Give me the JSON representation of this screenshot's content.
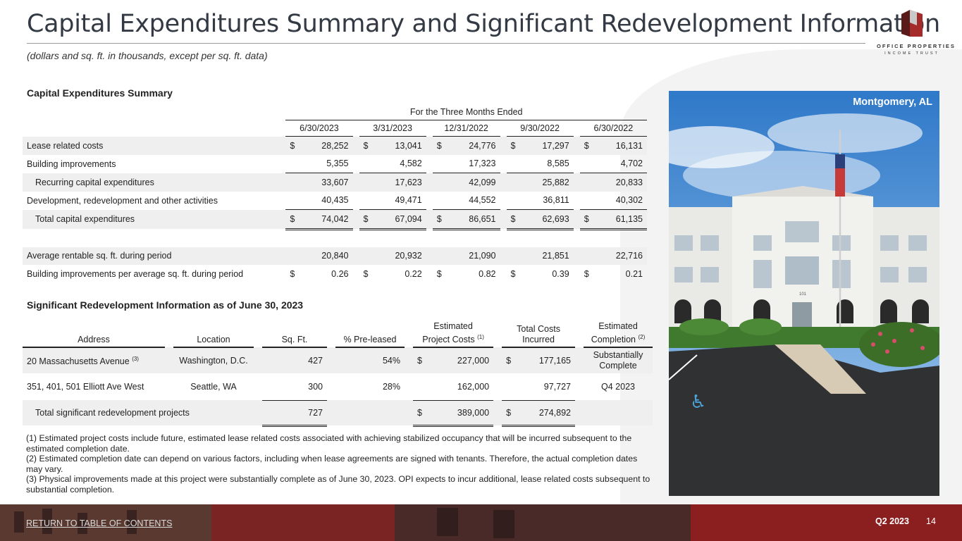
{
  "header": {
    "title": "Capital Expenditures Summary and Significant Redevelopment Information",
    "subtitle": "(dollars and sq. ft. in thousands, except per sq. ft. data)",
    "logo_line1": "OFFICE PROPERTIES",
    "logo_line2": "INCOME TRUST"
  },
  "capex": {
    "heading": "Capital Expenditures Summary",
    "period_header": "For the Three Months Ended",
    "dates": [
      "6/30/2023",
      "3/31/2023",
      "12/31/2022",
      "9/30/2022",
      "6/30/2022"
    ],
    "rows": [
      {
        "label": "Lease related costs",
        "values": [
          "28,252",
          "13,041",
          "24,776",
          "17,297",
          "16,131"
        ],
        "dollar": "$"
      },
      {
        "label": "Building improvements",
        "values": [
          "5,355",
          "4,582",
          "17,323",
          "8,585",
          "4,702"
        ]
      },
      {
        "label": "Recurring capital expenditures",
        "values": [
          "33,607",
          "17,623",
          "42,099",
          "25,882",
          "20,833"
        ]
      },
      {
        "label": "Development, redevelopment and other activities",
        "values": [
          "40,435",
          "49,471",
          "44,552",
          "36,811",
          "40,302"
        ]
      },
      {
        "label": "Total capital expenditures",
        "values": [
          "74,042",
          "67,094",
          "86,651",
          "62,693",
          "61,135"
        ],
        "dollar": "$"
      },
      {
        "label": "Average rentable sq. ft. during period",
        "values": [
          "20,840",
          "20,932",
          "21,090",
          "21,851",
          "22,716"
        ]
      },
      {
        "label": "Building improvements per average sq. ft. during period",
        "values": [
          "0.26",
          "0.22",
          "0.82",
          "0.39",
          "0.21"
        ],
        "dollar": "$"
      }
    ]
  },
  "redev": {
    "heading": "Significant Redevelopment Information as of June 30, 2023",
    "columns": {
      "address": "Address",
      "location": "Location",
      "sqft": "Sq. Ft.",
      "preleased": "% Pre-leased",
      "est_costs_1": "Estimated",
      "est_costs_2": "Project Costs",
      "est_costs_sup": "(1)",
      "total_costs_1": "Total Costs",
      "total_costs_2": "Incurred",
      "completion_1": "Estimated",
      "completion_2": "Completion",
      "completion_sup": "(2)"
    },
    "rows": [
      {
        "address": "20 Massachusetts Avenue",
        "address_sup": "(3)",
        "location": "Washington, D.C.",
        "sqft": "427",
        "preleased": "54%",
        "dollar": "$",
        "est_costs": "227,000",
        "total_costs": "177,165",
        "completion_1": "Substantially",
        "completion_2": "Complete"
      },
      {
        "address": "351, 401, 501 Elliott Ave West",
        "location": "Seattle, WA",
        "sqft": "300",
        "preleased": "28%",
        "est_costs": "162,000",
        "total_costs": "97,727",
        "completion": "Q4 2023"
      }
    ],
    "total": {
      "label": "Total significant redevelopment projects",
      "sqft": "727",
      "dollar": "$",
      "est_costs": "389,000",
      "total_costs": "274,892"
    }
  },
  "notes": [
    "(1) Estimated project costs include future, estimated lease related costs associated with achieving stabilized occupancy that will be incurred subsequent to the estimated completion date.",
    "(2) Estimated completion date can depend on various factors, including when lease agreements are signed with tenants. Therefore, the actual completion dates may vary.",
    "(3) Physical improvements made at this project were substantially complete as of June 30, 2023. OPI expects to incur additional, lease related costs subsequent to substantial completion."
  ],
  "photo": {
    "label": "Montgomery, AL",
    "sign": "101"
  },
  "footer": {
    "link": "RETURN TO TABLE OF CONTENTS",
    "quarter": "Q2 2023",
    "page": "14"
  },
  "colors": {
    "brand_red": "#8b1f1f",
    "footer_dark": "#3a2020"
  }
}
